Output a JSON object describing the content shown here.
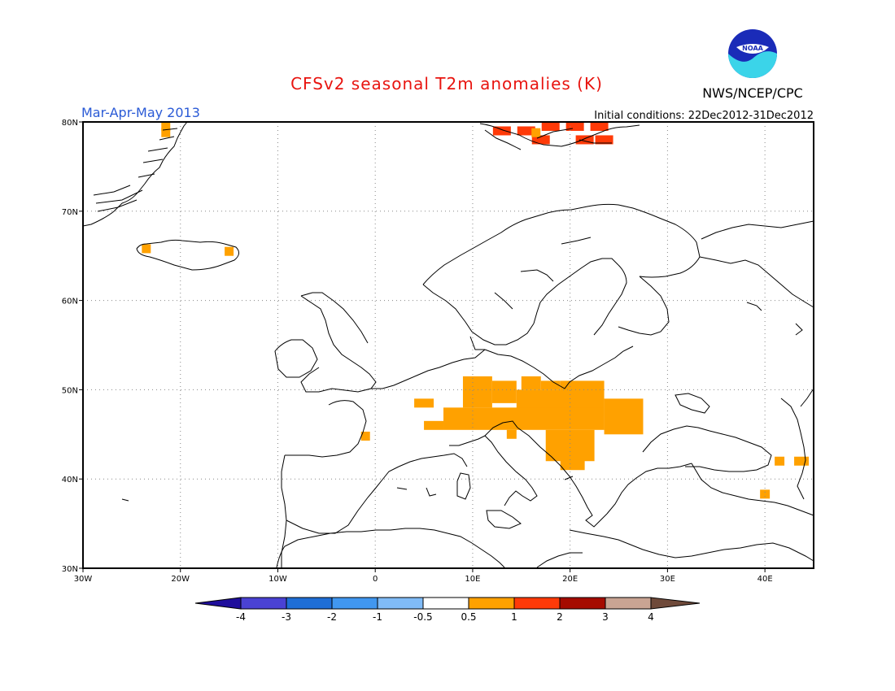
{
  "title": "CFSv2 seasonal T2m anomalies (K)",
  "season": "Mar-Apr-May 2013",
  "initial_conditions": "Initial conditions: 22Dec2012-31Dec2012",
  "agency": "NWS/NCEP/CPC",
  "logo_text": "NOAA",
  "colors": {
    "title": "#e8140f",
    "season": "#2a5ad6",
    "anom_0_5_1": "#ffa100",
    "anom_1_2": "#ff3a08",
    "land_line": "#000000",
    "grid": "#888888"
  },
  "map": {
    "lon_range": [
      -30,
      45
    ],
    "lat_range": [
      30,
      80
    ],
    "x_ticks": [
      "30W",
      "20W",
      "10W",
      "0",
      "10E",
      "20E",
      "30E",
      "40E"
    ],
    "y_ticks": [
      "30N",
      "40N",
      "50N",
      "60N",
      "70N",
      "80N"
    ],
    "anomaly_cells": [
      {
        "lon": -21.5,
        "lat": 79.5,
        "level": 1
      },
      {
        "lon": -21.5,
        "lat": 78.8,
        "level": 1
      },
      {
        "lon": -23.5,
        "lat": 65.8,
        "level": 1
      },
      {
        "lon": -15.0,
        "lat": 65.5,
        "level": 1
      },
      {
        "lon": 13.0,
        "lat": 79.0,
        "level": 2
      },
      {
        "lon": 15.5,
        "lat": 79.0,
        "level": 2
      },
      {
        "lon": 17.0,
        "lat": 78.0,
        "level": 2
      },
      {
        "lon": 18.0,
        "lat": 79.5,
        "level": 2
      },
      {
        "lon": 20.5,
        "lat": 79.5,
        "level": 2
      },
      {
        "lon": 23.0,
        "lat": 79.5,
        "level": 2
      },
      {
        "lon": 21.5,
        "lat": 78.0,
        "level": 2
      },
      {
        "lon": 23.5,
        "lat": 78.0,
        "level": 2
      },
      {
        "lon": 16.5,
        "lat": 78.8,
        "level": 1
      },
      {
        "lon": -1.0,
        "lat": 44.8,
        "level": 1
      }
    ],
    "anomaly_blocks": [
      {
        "lon1": 9.0,
        "lon2": 12.0,
        "lat1": 48.0,
        "lat2": 51.5
      },
      {
        "lon1": 12.0,
        "lon2": 14.5,
        "lat1": 48.5,
        "lat2": 51.0
      },
      {
        "lon1": 14.5,
        "lon2": 19.5,
        "lat1": 47.5,
        "lat2": 50.0
      },
      {
        "lon1": 15.0,
        "lon2": 17.0,
        "lat1": 50.0,
        "lat2": 51.5
      },
      {
        "lon1": 17.0,
        "lon2": 19.0,
        "lat1": 50.0,
        "lat2": 51.0
      },
      {
        "lon1": 19.0,
        "lon2": 23.5,
        "lat1": 47.0,
        "lat2": 51.0
      },
      {
        "lon1": 23.5,
        "lon2": 27.5,
        "lat1": 45.0,
        "lat2": 49.0
      },
      {
        "lon1": 7.0,
        "lon2": 23.5,
        "lat1": 45.5,
        "lat2": 48.0
      },
      {
        "lon1": 5.0,
        "lon2": 7.0,
        "lat1": 45.5,
        "lat2": 46.5
      },
      {
        "lon1": 4.0,
        "lon2": 6.0,
        "lat1": 48.0,
        "lat2": 49.0
      },
      {
        "lon1": 17.5,
        "lon2": 22.5,
        "lat1": 42.0,
        "lat2": 45.5
      },
      {
        "lon1": 19.0,
        "lon2": 21.5,
        "lat1": 41.0,
        "lat2": 42.5
      },
      {
        "lon1": 13.5,
        "lon2": 14.5,
        "lat1": 44.5,
        "lat2": 45.5
      },
      {
        "lon1": 41.0,
        "lon2": 42.0,
        "lat1": 41.5,
        "lat2": 42.5
      },
      {
        "lon1": 43.0,
        "lon2": 44.5,
        "lat1": 41.5,
        "lat2": 42.5
      },
      {
        "lon1": 39.5,
        "lon2": 40.5,
        "lat1": 37.8,
        "lat2": 38.8
      }
    ]
  },
  "colorbar": {
    "labels": [
      "-4",
      "-3",
      "-2",
      "-1",
      "-0.5",
      "0.5",
      "1",
      "2",
      "3",
      "4"
    ],
    "colors": [
      "#1f0e9c",
      "#4a42d4",
      "#1f6ed6",
      "#4197f0",
      "#80bbf7",
      "#ffffff",
      "#ffa100",
      "#ff3a08",
      "#a50b00",
      "#c9a493",
      "#6f4a3a"
    ]
  }
}
